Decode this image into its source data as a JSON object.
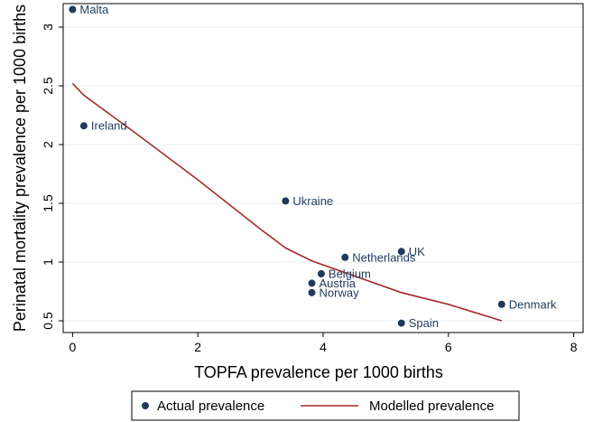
{
  "chart_data": {
    "type": "scatter",
    "xlabel": "TOPFA prevalence per 1000 births",
    "ylabel": "Perinatal mortality prevalence per 1000 births",
    "xlim": [
      -0.15,
      8.15
    ],
    "ylim": [
      0.4,
      3.2
    ],
    "xticks": [
      "0",
      "2",
      "4",
      "6",
      "8"
    ],
    "yticks": [
      "0.5",
      "1",
      "1.5",
      "2",
      "2.5",
      "3"
    ],
    "grid": "horizontal",
    "legend_position": "bottom",
    "series": [
      {
        "name": "Actual prevalence",
        "kind": "scatter",
        "color": "#1f3a5a",
        "points": [
          {
            "label": "Malta",
            "x": 0.0,
            "y": 3.15
          },
          {
            "label": "Ireland",
            "x": 0.18,
            "y": 2.16
          },
          {
            "label": "Ukraine",
            "x": 3.4,
            "y": 1.52
          },
          {
            "label": "Netherlands",
            "x": 4.35,
            "y": 1.04
          },
          {
            "label": "UK",
            "x": 5.25,
            "y": 1.09
          },
          {
            "label": "Belgium",
            "x": 3.97,
            "y": 0.9
          },
          {
            "label": "Austria",
            "x": 3.82,
            "y": 0.82
          },
          {
            "label": "Norway",
            "x": 3.82,
            "y": 0.74
          },
          {
            "label": "Denmark",
            "x": 6.85,
            "y": 0.64
          },
          {
            "label": "Spain",
            "x": 5.25,
            "y": 0.48
          }
        ]
      },
      {
        "name": "Modelled prevalence",
        "kind": "line",
        "color": "#a52a2a",
        "points": [
          {
            "x": 0.0,
            "y": 2.52
          },
          {
            "x": 0.18,
            "y": 2.42
          },
          {
            "x": 1.0,
            "y": 2.1
          },
          {
            "x": 2.0,
            "y": 1.7
          },
          {
            "x": 3.0,
            "y": 1.28
          },
          {
            "x": 3.4,
            "y": 1.12
          },
          {
            "x": 3.82,
            "y": 1.01
          },
          {
            "x": 4.35,
            "y": 0.91
          },
          {
            "x": 5.25,
            "y": 0.74
          },
          {
            "x": 6.0,
            "y": 0.64
          },
          {
            "x": 6.85,
            "y": 0.5
          }
        ]
      }
    ]
  }
}
